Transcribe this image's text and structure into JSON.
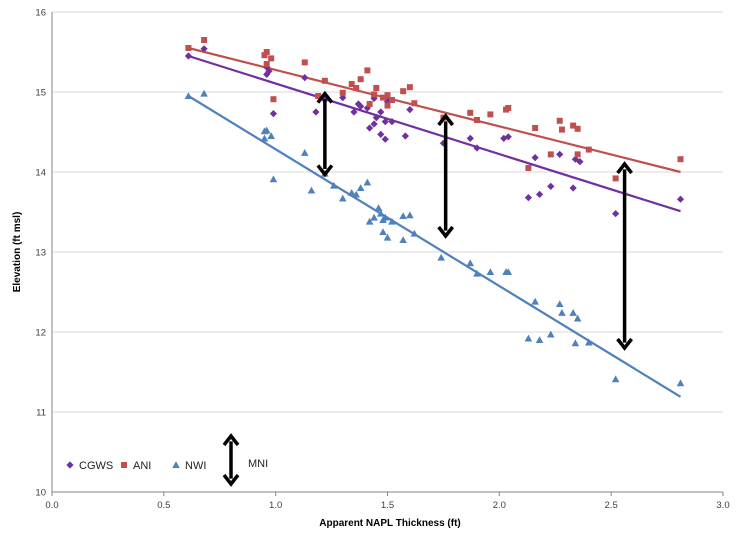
{
  "chart_data": {
    "type": "scatter",
    "xlabel": "Apparent NAPL Thickness (ft)",
    "ylabel": "Elevation (ft msl)",
    "xlim": [
      0,
      3
    ],
    "ylim": [
      10,
      16
    ],
    "xticks": [
      "0.0",
      "0.5",
      "1.0",
      "1.5",
      "2.0",
      "2.5",
      "3.0"
    ],
    "yticks": [
      "10",
      "11",
      "12",
      "13",
      "14",
      "15",
      "16"
    ],
    "grid": "horizontal",
    "legend_position": "bottom-left",
    "series": [
      {
        "name": "CGWS",
        "marker": "diamond",
        "color": "#7030A0",
        "points": [
          [
            0.61,
            15.45
          ],
          [
            0.68,
            15.54
          ],
          [
            0.96,
            15.31
          ],
          [
            0.96,
            15.22
          ],
          [
            0.97,
            15.26
          ],
          [
            0.99,
            14.73
          ],
          [
            1.13,
            15.18
          ],
          [
            1.18,
            14.75
          ],
          [
            1.22,
            14.9
          ],
          [
            1.3,
            14.93
          ],
          [
            1.35,
            14.75
          ],
          [
            1.37,
            14.85
          ],
          [
            1.38,
            14.82
          ],
          [
            1.41,
            14.8
          ],
          [
            1.42,
            14.55
          ],
          [
            1.44,
            14.6
          ],
          [
            1.44,
            14.92
          ],
          [
            1.45,
            14.68
          ],
          [
            1.47,
            14.75
          ],
          [
            1.47,
            14.47
          ],
          [
            1.49,
            14.41
          ],
          [
            1.49,
            14.63
          ],
          [
            1.5,
            14.88
          ],
          [
            1.52,
            14.63
          ],
          [
            1.58,
            14.45
          ],
          [
            1.6,
            14.78
          ],
          [
            1.75,
            14.36
          ],
          [
            1.87,
            14.42
          ],
          [
            1.9,
            14.3
          ],
          [
            2.02,
            14.42
          ],
          [
            2.04,
            14.44
          ],
          [
            2.13,
            13.68
          ],
          [
            2.16,
            14.18
          ],
          [
            2.18,
            13.72
          ],
          [
            2.23,
            13.82
          ],
          [
            2.27,
            14.22
          ],
          [
            2.33,
            13.8
          ],
          [
            2.34,
            14.16
          ],
          [
            2.36,
            14.13
          ],
          [
            2.52,
            13.48
          ],
          [
            2.81,
            13.66
          ]
        ],
        "trend": [
          [
            0.61,
            15.45
          ],
          [
            2.81,
            13.51
          ]
        ]
      },
      {
        "name": "ANI",
        "marker": "square",
        "color": "#C0504D",
        "points": [
          [
            0.61,
            15.55
          ],
          [
            0.68,
            15.65
          ],
          [
            0.95,
            15.46
          ],
          [
            0.96,
            15.5
          ],
          [
            0.96,
            15.35
          ],
          [
            0.98,
            15.42
          ],
          [
            0.99,
            14.91
          ],
          [
            1.13,
            15.37
          ],
          [
            1.19,
            14.95
          ],
          [
            1.22,
            15.14
          ],
          [
            1.3,
            14.99
          ],
          [
            1.34,
            15.1
          ],
          [
            1.36,
            15.05
          ],
          [
            1.38,
            15.16
          ],
          [
            1.41,
            15.27
          ],
          [
            1.42,
            14.85
          ],
          [
            1.44,
            14.97
          ],
          [
            1.45,
            15.05
          ],
          [
            1.48,
            14.93
          ],
          [
            1.5,
            14.83
          ],
          [
            1.5,
            14.96
          ],
          [
            1.52,
            14.9
          ],
          [
            1.57,
            15.01
          ],
          [
            1.6,
            15.06
          ],
          [
            1.62,
            14.86
          ],
          [
            1.75,
            14.68
          ],
          [
            1.87,
            14.74
          ],
          [
            1.9,
            14.65
          ],
          [
            1.96,
            14.72
          ],
          [
            2.03,
            14.78
          ],
          [
            2.04,
            14.8
          ],
          [
            2.13,
            14.05
          ],
          [
            2.16,
            14.55
          ],
          [
            2.23,
            14.22
          ],
          [
            2.27,
            14.64
          ],
          [
            2.28,
            14.53
          ],
          [
            2.33,
            14.58
          ],
          [
            2.35,
            14.54
          ],
          [
            2.35,
            14.22
          ],
          [
            2.4,
            14.28
          ],
          [
            2.52,
            13.92
          ],
          [
            2.81,
            14.16
          ]
        ],
        "trend": [
          [
            0.61,
            15.55
          ],
          [
            2.81,
            14.0
          ]
        ]
      },
      {
        "name": "NWI",
        "marker": "triangle",
        "color": "#4F81BD",
        "points": [
          [
            0.61,
            14.95
          ],
          [
            0.68,
            14.98
          ],
          [
            0.95,
            14.51
          ],
          [
            0.95,
            14.42
          ],
          [
            0.96,
            14.52
          ],
          [
            0.98,
            14.45
          ],
          [
            0.99,
            13.91
          ],
          [
            1.13,
            14.24
          ],
          [
            1.16,
            13.77
          ],
          [
            1.22,
            13.98
          ],
          [
            1.26,
            13.83
          ],
          [
            1.3,
            13.67
          ],
          [
            1.34,
            13.74
          ],
          [
            1.36,
            13.72
          ],
          [
            1.38,
            13.8
          ],
          [
            1.41,
            13.87
          ],
          [
            1.42,
            13.38
          ],
          [
            1.44,
            13.43
          ],
          [
            1.46,
            13.55
          ],
          [
            1.47,
            13.48
          ],
          [
            1.48,
            13.25
          ],
          [
            1.48,
            13.4
          ],
          [
            1.49,
            13.43
          ],
          [
            1.5,
            13.18
          ],
          [
            1.52,
            13.38
          ],
          [
            1.57,
            13.15
          ],
          [
            1.57,
            13.45
          ],
          [
            1.6,
            13.46
          ],
          [
            1.62,
            13.23
          ],
          [
            1.74,
            12.93
          ],
          [
            1.87,
            12.86
          ],
          [
            1.9,
            12.73
          ],
          [
            1.96,
            12.75
          ],
          [
            2.03,
            12.75
          ],
          [
            2.04,
            12.75
          ],
          [
            2.13,
            11.92
          ],
          [
            2.16,
            12.38
          ],
          [
            2.18,
            11.9
          ],
          [
            2.23,
            11.97
          ],
          [
            2.27,
            12.35
          ],
          [
            2.28,
            12.24
          ],
          [
            2.33,
            12.24
          ],
          [
            2.34,
            11.86
          ],
          [
            2.35,
            12.17
          ],
          [
            2.4,
            11.87
          ],
          [
            2.52,
            11.41
          ],
          [
            2.81,
            11.36
          ]
        ],
        "trend": [
          [
            0.61,
            14.95
          ],
          [
            2.81,
            11.19
          ]
        ]
      }
    ],
    "annotations": {
      "mni_arrows": [
        {
          "x": 1.22,
          "y_top": 14.98,
          "y_bottom": 13.97
        },
        {
          "x": 1.76,
          "y_top": 14.7,
          "y_bottom": 13.2
        },
        {
          "x": 2.56,
          "y_top": 14.1,
          "y_bottom": 11.8
        }
      ],
      "legend_mni": {
        "label": "MNI",
        "icon": "double-headed-arrow"
      }
    }
  }
}
